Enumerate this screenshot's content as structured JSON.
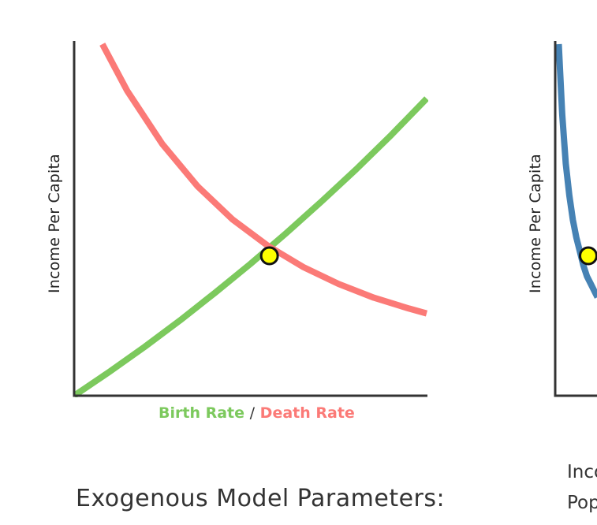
{
  "colors": {
    "birth": "#7cc95d",
    "death": "#fb7a77",
    "income_curve": "#4682b4",
    "equilibrium_fill": "#ffff00",
    "axis": "#333333"
  },
  "chart_data": [
    {
      "type": "line",
      "title": "",
      "ylabel": "Income Per Capita",
      "xlabel_parts": {
        "birth": "Birth Rate",
        "sep": "/",
        "death": "Death Rate"
      },
      "xlim": [
        0,
        1
      ],
      "ylim": [
        0,
        1
      ],
      "grid": false,
      "series": [
        {
          "name": "Birth Rate",
          "x": [
            0,
            0.1,
            0.2,
            0.3,
            0.4,
            0.5,
            0.6,
            0.7,
            0.8,
            0.9,
            1.0
          ],
          "y": [
            0,
            0.068,
            0.139,
            0.214,
            0.293,
            0.375,
            0.461,
            0.551,
            0.644,
            0.742,
            0.845
          ]
        },
        {
          "name": "Death Rate",
          "x": [
            0.08,
            0.15,
            0.25,
            0.35,
            0.45,
            0.55,
            0.65,
            0.75,
            0.85,
            0.95,
            1.0
          ],
          "y": [
            1.0,
            0.868,
            0.716,
            0.596,
            0.501,
            0.426,
            0.366,
            0.318,
            0.279,
            0.248,
            0.234
          ]
        }
      ],
      "equilibrium": {
        "x": 0.554,
        "y": 0.398
      }
    },
    {
      "type": "line",
      "title": "",
      "ylabel": "Income Per Capita",
      "xlabel": "",
      "series": [
        {
          "x": [
            0.01,
            0.02,
            0.03,
            0.04,
            0.05,
            0.06,
            0.07,
            0.08,
            0.09,
            0.1,
            0.12
          ],
          "y": [
            1.0,
            0.8,
            0.66,
            0.57,
            0.5,
            0.45,
            0.41,
            0.37,
            0.34,
            0.32,
            0.28
          ]
        }
      ],
      "equilibrium": {
        "x": 0.094,
        "y": 0.398
      }
    }
  ],
  "heading": "Exogenous Model Parameters:",
  "right_panel": {
    "label_line1": "Inco",
    "label_line2": "Pop"
  }
}
